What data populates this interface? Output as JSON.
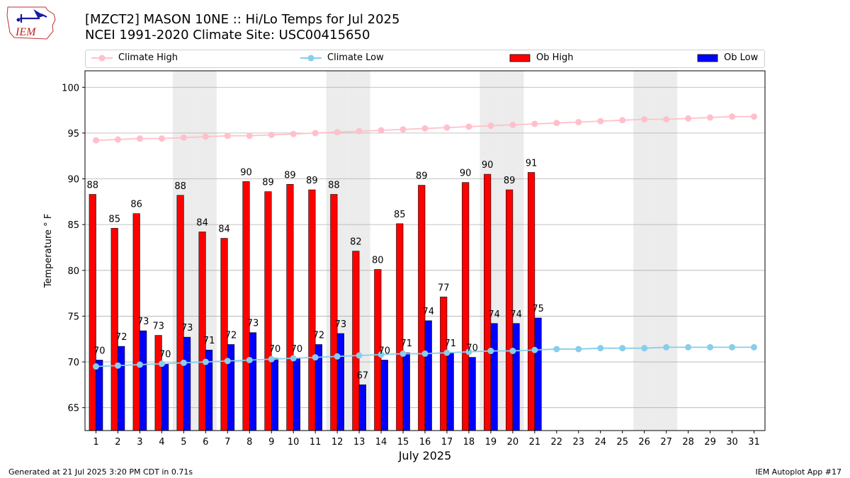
{
  "header": {
    "title_line1": "[MZCT2] MASON 10NE :: Hi/Lo Temps for Jul 2025",
    "title_line2": "NCEI 1991-2020 Climate Site: USC00415650",
    "logo_text": "IEM"
  },
  "legend": {
    "climate_high": "Climate High",
    "climate_low": "Climate Low",
    "ob_high": "Ob High",
    "ob_low": "Ob Low"
  },
  "footer": {
    "left": "Generated at 21 Jul 2025 3:20 PM CDT in 0.71s",
    "right": "IEM Autoplot App #17"
  },
  "colors": {
    "ob_high": "#ff0000",
    "ob_low": "#0000ff",
    "climate_high": "#ffc0cb",
    "climate_low": "#87ceeb",
    "weekend_shade": "#ececec",
    "grid": "#b0b0b0"
  },
  "chart_data": {
    "type": "bar",
    "xlabel": "July 2025",
    "ylabel": "Temperature ° F",
    "ylim": [
      62.5,
      101.8
    ],
    "yticks": [
      65,
      70,
      75,
      80,
      85,
      90,
      95,
      100
    ],
    "grid": "horizontal",
    "legend_position": "top",
    "days": [
      1,
      2,
      3,
      4,
      5,
      6,
      7,
      8,
      9,
      10,
      11,
      12,
      13,
      14,
      15,
      16,
      17,
      18,
      19,
      20,
      21,
      22,
      23,
      24,
      25,
      26,
      27,
      28,
      29,
      30,
      31
    ],
    "weekend_days": [
      5,
      6,
      12,
      13,
      19,
      20,
      26,
      27
    ],
    "series": [
      {
        "name": "Ob High",
        "kind": "bar",
        "values": [
          88.3,
          84.6,
          86.2,
          72.9,
          88.2,
          84.2,
          83.5,
          89.7,
          88.6,
          89.4,
          88.8,
          88.3,
          82.1,
          80.1,
          85.1,
          89.3,
          77.1,
          89.6,
          90.5,
          88.8,
          90.7
        ],
        "labels": [
          "88",
          "85",
          "86",
          "73",
          "88",
          "84",
          "84",
          "90",
          "89",
          "89",
          "89",
          "88",
          "82",
          "80",
          "85",
          "89",
          "77",
          "90",
          "90",
          "89",
          "91"
        ]
      },
      {
        "name": "Ob Low",
        "kind": "bar",
        "values": [
          70.2,
          71.7,
          73.4,
          69.8,
          72.7,
          71.3,
          71.9,
          73.2,
          70.4,
          70.4,
          71.9,
          73.1,
          67.5,
          70.2,
          71.0,
          74.5,
          71.0,
          70.5,
          74.2,
          74.2,
          74.8
        ],
        "labels": [
          "70",
          "72",
          "73",
          "70",
          "73",
          "71",
          "72",
          "73",
          "70",
          "70",
          "72",
          "73",
          "67",
          "70",
          "71",
          "74",
          "71",
          "70",
          "74",
          "74",
          "75"
        ]
      },
      {
        "name": "Climate High",
        "kind": "line",
        "values": [
          94.2,
          94.3,
          94.4,
          94.4,
          94.5,
          94.6,
          94.7,
          94.7,
          94.8,
          94.9,
          95.0,
          95.1,
          95.2,
          95.3,
          95.4,
          95.5,
          95.6,
          95.7,
          95.8,
          95.9,
          96.0,
          96.1,
          96.2,
          96.3,
          96.4,
          96.5,
          96.5,
          96.6,
          96.7,
          96.8,
          96.8
        ]
      },
      {
        "name": "Climate Low",
        "kind": "line",
        "values": [
          69.5,
          69.6,
          69.7,
          69.8,
          69.9,
          70.0,
          70.1,
          70.2,
          70.3,
          70.4,
          70.5,
          70.6,
          70.7,
          70.8,
          70.9,
          70.9,
          71.0,
          71.1,
          71.2,
          71.2,
          71.3,
          71.4,
          71.4,
          71.5,
          71.5,
          71.5,
          71.6,
          71.6,
          71.6,
          71.6,
          71.6
        ]
      }
    ]
  }
}
